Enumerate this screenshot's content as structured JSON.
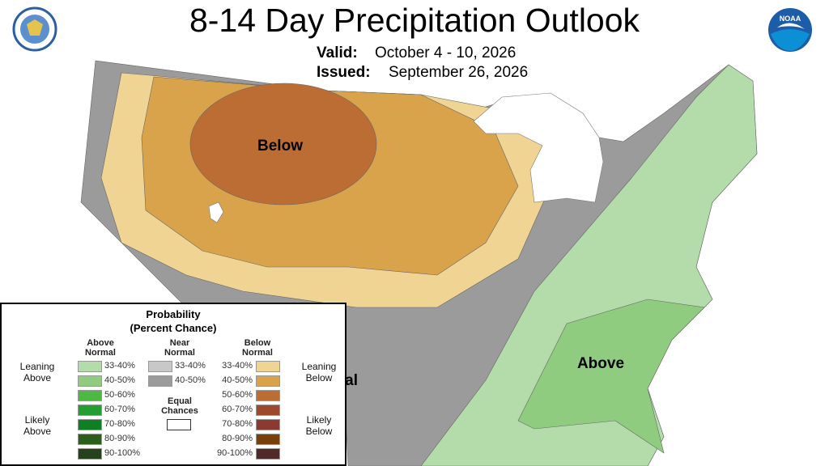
{
  "header": {
    "title": "8-14 Day Precipitation Outlook",
    "valid_label": "Valid:",
    "valid": "October 4 - 10, 2026",
    "issued_label": "Issued:",
    "issued": "September 26, 2026",
    "logo_text": "NOAA"
  },
  "map": {
    "labels": [
      "Below",
      "Above",
      "Normal"
    ]
  },
  "legend": {
    "title": "Probability",
    "subtitle": "(Percent Chance)",
    "above": {
      "heading": "Above Normal",
      "groups": [
        "Leaning Above",
        "Likely Above"
      ],
      "bins": [
        {
          "label": "33-40%",
          "color": "#b3dcaa"
        },
        {
          "label": "40-50%",
          "color": "#90cc80"
        },
        {
          "label": "50-60%",
          "color": "#4db844"
        },
        {
          "label": "60-70%",
          "color": "#239e33"
        },
        {
          "label": "70-80%",
          "color": "#0e8023"
        },
        {
          "label": "80-90%",
          "color": "#2a5e1a"
        },
        {
          "label": "90-100%",
          "color": "#24421b"
        }
      ]
    },
    "near": {
      "heading": "Near Normal",
      "bins": [
        {
          "label": "33-40%",
          "color": "#c8c8c8"
        },
        {
          "label": "40-50%",
          "color": "#9b9b9b"
        }
      ]
    },
    "below": {
      "heading": "Below Normal",
      "groups": [
        "Leaning Below",
        "Likely Below"
      ],
      "bins": [
        {
          "label": "33-40%",
          "color": "#f0d494"
        },
        {
          "label": "40-50%",
          "color": "#d9a34c"
        },
        {
          "label": "50-60%",
          "color": "#bc6d34"
        },
        {
          "label": "60-70%",
          "color": "#9c4a2a"
        },
        {
          "label": "70-80%",
          "color": "#8a3a33"
        },
        {
          "label": "80-90%",
          "color": "#7b4009"
        },
        {
          "label": "90-100%",
          "color": "#4f2a28"
        }
      ]
    },
    "equal": {
      "label": "Equal Chances",
      "color": "#ffffff"
    }
  }
}
